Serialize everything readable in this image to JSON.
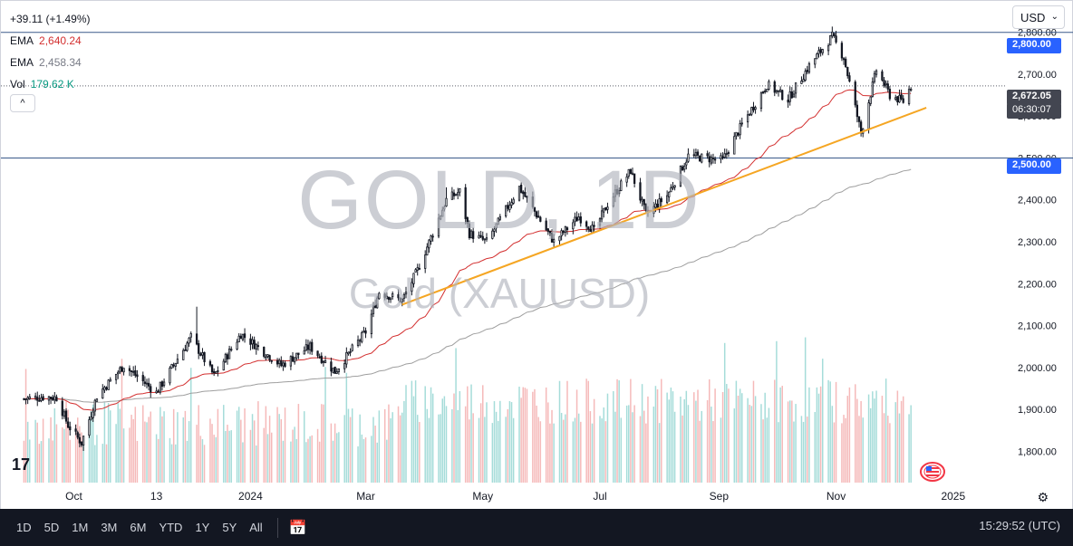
{
  "legend": {
    "change": "+39.11 (+1.49%)",
    "ema1_label": "EMA",
    "ema1_value": "2,640.24",
    "ema2_label": "EMA",
    "ema2_value": "2,458.34",
    "vol_label": "Vol",
    "vol_value": "179.62 K"
  },
  "collapse_icon": "^",
  "currency": {
    "label": "USD",
    "chevron": "⌄"
  },
  "watermark": {
    "symbol": "GOLD, 1D",
    "name": "Gold (XAUUSD)"
  },
  "price_tags": {
    "level_high": "2,800.00",
    "last_price": "2,672.05",
    "countdown": "06:30:07",
    "level_low": "2,500.00"
  },
  "colors": {
    "up": "#089981",
    "down": "#131722",
    "ema_fast": "#d32f2f",
    "ema_slow": "#9e9e9e",
    "trendline": "#f5a623",
    "level_line": "#3a5a8a",
    "tag_blue": "#2962ff",
    "tag_dark": "#434651",
    "vol_up": "#8fd3d0",
    "vol_down": "#f2a7a7"
  },
  "logo_text": "17",
  "icons": {
    "settings": "gear-icon",
    "calendar": "calendar-range-icon",
    "event": "us-flag-icon"
  },
  "toolbar": {
    "timeframes": [
      "1D",
      "5D",
      "1M",
      "3M",
      "6M",
      "YTD",
      "1Y",
      "5Y",
      "All"
    ],
    "clock": "15:29:52 (UTC)"
  },
  "chart_data": {
    "type": "candlestick",
    "symbol": "XAUUSD",
    "interval": "1D",
    "y_axis": {
      "ticks": [
        1800,
        1900,
        2000,
        2100,
        2200,
        2300,
        2400,
        2500,
        2600,
        2700,
        2800
      ],
      "range": [
        1725,
        2875
      ]
    },
    "x_axis": {
      "labels": [
        "Oct",
        "13",
        "2024",
        "Mar",
        "May",
        "Jul",
        "Sep",
        "Nov",
        "2025"
      ]
    },
    "close_path": [
      {
        "t": "2023-09-05",
        "v": 1925
      },
      {
        "t": "2023-09-15",
        "v": 1930
      },
      {
        "t": "2023-09-22",
        "v": 1928
      },
      {
        "t": "2023-09-28",
        "v": 1862
      },
      {
        "t": "2023-10-05",
        "v": 1820
      },
      {
        "t": "2023-10-13",
        "v": 1932
      },
      {
        "t": "2023-10-27",
        "v": 2005
      },
      {
        "t": "2023-11-13",
        "v": 1940
      },
      {
        "t": "2023-12-01",
        "v": 2072
      },
      {
        "t": "2023-12-13",
        "v": 1980
      },
      {
        "t": "2023-12-27",
        "v": 2080
      },
      {
        "t": "2024-01-17",
        "v": 2005
      },
      {
        "t": "2024-02-01",
        "v": 2050
      },
      {
        "t": "2024-02-14",
        "v": 1990
      },
      {
        "t": "2024-03-01",
        "v": 2085
      },
      {
        "t": "2024-03-08",
        "v": 2180
      },
      {
        "t": "2024-03-20",
        "v": 2160
      },
      {
        "t": "2024-03-28",
        "v": 2232
      },
      {
        "t": "2024-04-12",
        "v": 2400
      },
      {
        "t": "2024-04-19",
        "v": 2420
      },
      {
        "t": "2024-04-24",
        "v": 2320
      },
      {
        "t": "2024-05-03",
        "v": 2300
      },
      {
        "t": "2024-05-20",
        "v": 2430
      },
      {
        "t": "2024-06-07",
        "v": 2300
      },
      {
        "t": "2024-06-20",
        "v": 2360
      },
      {
        "t": "2024-06-28",
        "v": 2327
      },
      {
        "t": "2024-07-05",
        "v": 2390
      },
      {
        "t": "2024-07-17",
        "v": 2470
      },
      {
        "t": "2024-07-25",
        "v": 2365
      },
      {
        "t": "2024-08-05",
        "v": 2410
      },
      {
        "t": "2024-08-16",
        "v": 2505
      },
      {
        "t": "2024-09-03",
        "v": 2495
      },
      {
        "t": "2024-09-13",
        "v": 2580
      },
      {
        "t": "2024-09-26",
        "v": 2675
      },
      {
        "t": "2024-10-07",
        "v": 2640
      },
      {
        "t": "2024-10-18",
        "v": 2720
      },
      {
        "t": "2024-10-30",
        "v": 2790
      },
      {
        "t": "2024-11-05",
        "v": 2740
      },
      {
        "t": "2024-11-14",
        "v": 2560
      },
      {
        "t": "2024-11-22",
        "v": 2710
      },
      {
        "t": "2024-11-29",
        "v": 2650
      },
      {
        "t": "2024-12-06",
        "v": 2635
      },
      {
        "t": "2024-12-10",
        "v": 2672
      }
    ],
    "series": [
      {
        "name": "EMA",
        "value": 2640.24
      },
      {
        "name": "EMA",
        "value": 2458.34
      },
      {
        "name": "Vol",
        "value": "179.62 K"
      }
    ],
    "horizontal_levels": [
      2800,
      2500
    ],
    "trendline": {
      "from": {
        "t": "2024-03-20",
        "v": 2150
      },
      "to": {
        "t": "2024-12-18",
        "v": 2620
      }
    },
    "last": 2672.05
  }
}
